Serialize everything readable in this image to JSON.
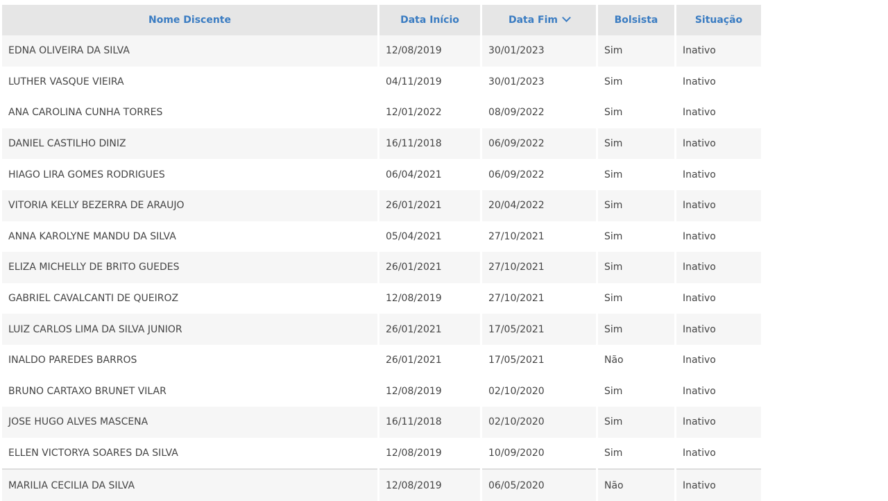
{
  "table": {
    "headers": [
      "Nome Discente",
      "Data Início",
      "Data Fim",
      "Bolsista",
      "Situação"
    ],
    "sorted_column": "Data Fim",
    "sort_direction": "descending",
    "header_color": "#3a7cc2",
    "rows": [
      [
        "EDNA OLIVEIRA DA SILVA",
        "12/08/2019",
        "30/01/2023",
        "Sim",
        "Inativo"
      ],
      [
        "LUTHER VASQUE VIEIRA",
        "04/11/2019",
        "30/01/2023",
        "Sim",
        "Inativo"
      ],
      [
        "ANA CAROLINA CUNHA TORRES",
        "12/01/2022",
        "08/09/2022",
        "Sim",
        "Inativo"
      ],
      [
        "DANIEL CASTILHO DINIZ",
        "16/11/2018",
        "06/09/2022",
        "Sim",
        "Inativo"
      ],
      [
        "HIAGO LIRA GOMES RODRIGUES",
        "06/04/2021",
        "06/09/2022",
        "Sim",
        "Inativo"
      ],
      [
        "VITORIA KELLY BEZERRA DE ARAUJO",
        "26/01/2021",
        "20/04/2022",
        "Sim",
        "Inativo"
      ],
      [
        "ANNA KAROLYNE MANDU DA SILVA",
        "05/04/2021",
        "27/10/2021",
        "Sim",
        "Inativo"
      ],
      [
        "ELIZA MICHELLY DE BRITO GUEDES",
        "26/01/2021",
        "27/10/2021",
        "Sim",
        "Inativo"
      ],
      [
        "GABRIEL CAVALCANTI DE QUEIROZ",
        "12/08/2019",
        "27/10/2021",
        "Sim",
        "Inativo"
      ],
      [
        "LUIZ CARLOS LIMA DA SILVA JUNIOR",
        "26/01/2021",
        "17/05/2021",
        "Sim",
        "Inativo"
      ],
      [
        "INALDO PAREDES BARROS",
        "26/01/2021",
        "17/05/2021",
        "Não",
        "Inativo"
      ],
      [
        "BRUNO CARTAXO BRUNET VILAR",
        "12/08/2019",
        "02/10/2020",
        "Sim",
        "Inativo"
      ],
      [
        "JOSE HUGO ALVES MASCENA",
        "16/11/2018",
        "02/10/2020",
        "Sim",
        "Inativo"
      ],
      [
        "ELLEN VICTORYA SOARES DA SILVA",
        "12/08/2019",
        "10/09/2020",
        "Sim",
        "Inativo"
      ],
      [
        "MARILIA CECILIA DA SILVA",
        "12/08/2019",
        "06/05/2020",
        "Não",
        "Inativo"
      ]
    ]
  }
}
